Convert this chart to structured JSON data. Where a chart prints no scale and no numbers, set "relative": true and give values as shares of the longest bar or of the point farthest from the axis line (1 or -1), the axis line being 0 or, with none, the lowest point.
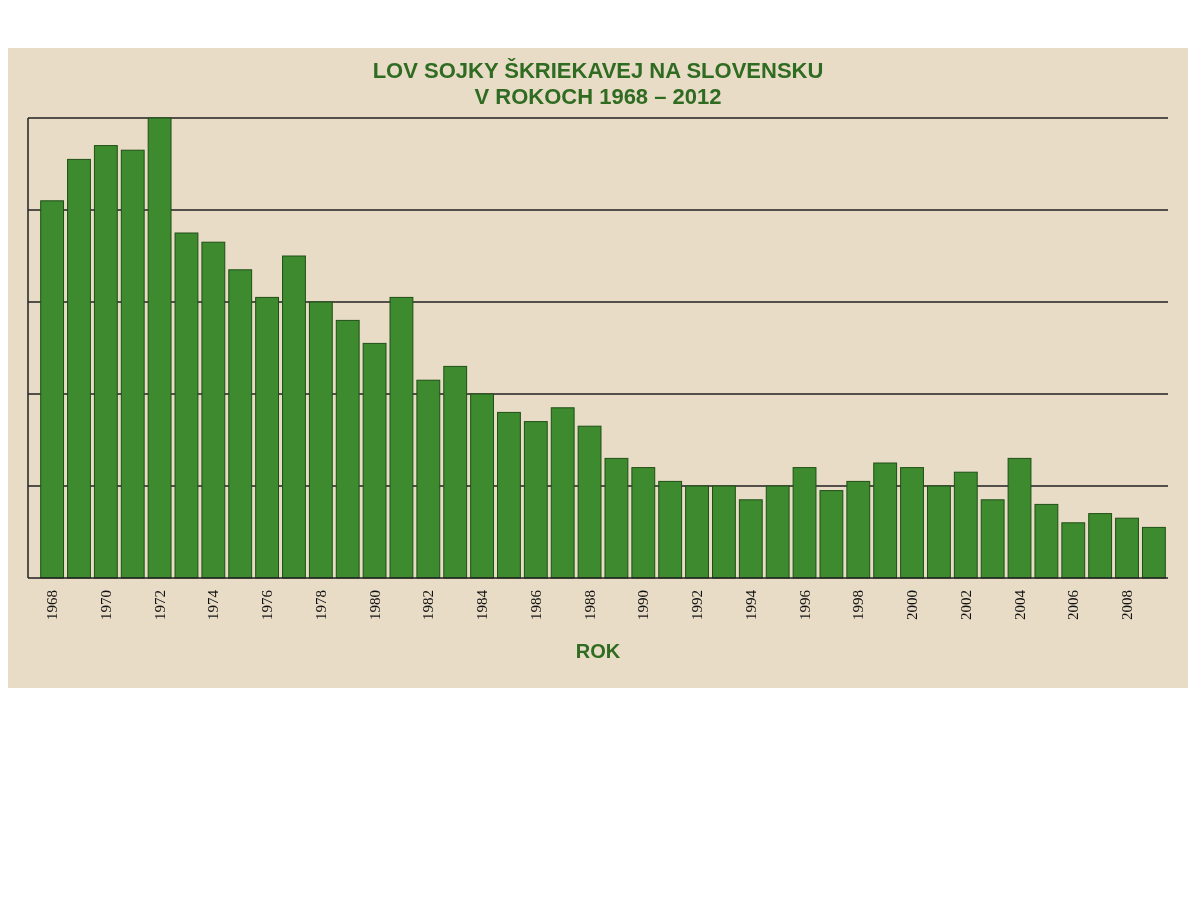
{
  "chart_data": {
    "type": "bar",
    "title": "LOV SOJKY ŠKRIEKAVEJ NA SLOVENSKU\nV ROKOCH 1968 – 2012",
    "xlabel": "ROK",
    "relative": true,
    "grid": "y",
    "color": "#3d8a2f",
    "categories": [
      "1968",
      null,
      "1970",
      null,
      "1972",
      null,
      "1974",
      null,
      "1976",
      null,
      "1978",
      null,
      "1980",
      null,
      "1982",
      null,
      "1984",
      null,
      "1986",
      null,
      "1988",
      null,
      "1990",
      null,
      "1992",
      null,
      "1994",
      null,
      "1996",
      null,
      "1998",
      null,
      "2000",
      null,
      "2002",
      null,
      "2004",
      null,
      "2006",
      null,
      "2008",
      null
    ],
    "values": [
      0.82,
      0.91,
      0.94,
      0.93,
      1,
      0.75,
      0.73,
      0.67,
      0.61,
      0.7,
      0.6,
      0.56,
      0.51,
      0.61,
      0.43,
      0.46,
      0.4,
      0.36,
      0.34,
      0.37,
      0.33,
      0.26,
      0.24,
      0.21,
      0.2,
      0.2,
      0.17,
      0.2,
      0.24,
      0.19,
      0.21,
      0.25,
      0.24,
      0.2,
      0.23,
      0.17,
      0.26,
      0.16,
      0.12,
      0.14,
      0.13,
      0.11
    ]
  }
}
